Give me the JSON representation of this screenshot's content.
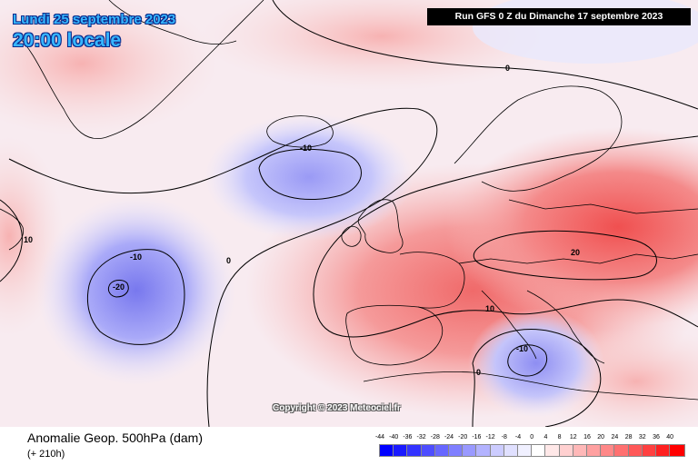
{
  "header": {
    "date": "Lundi 25 septembre 2023",
    "time": "20:00 locale",
    "run": "Run GFS 0 Z du Dimanche 17 septembre 2023"
  },
  "copyright": "Copyright © 2023 Meteociel.fr",
  "footer": {
    "field_title": "Anomalie Geop. 500hPa (dam)",
    "forecast_hour": "(+ 210h)"
  },
  "contour_labels": [
    "0",
    "-10",
    "10",
    "-10",
    "-20",
    "0",
    "20",
    "10",
    "-10",
    "0"
  ],
  "legend": {
    "ticks": [
      "-44",
      "-40",
      "-36",
      "-32",
      "-28",
      "-24",
      "-20",
      "-16",
      "-12",
      "-8",
      "-4",
      "0",
      "4",
      "8",
      "12",
      "16",
      "20",
      "24",
      "28",
      "32",
      "36",
      "40"
    ],
    "colors": [
      "#0000ff",
      "#1a1aff",
      "#3333ff",
      "#4d4dff",
      "#6666ff",
      "#7f7fff",
      "#9999ff",
      "#b3b3ff",
      "#ccccff",
      "#e0e0ff",
      "#f0f0ff",
      "#ffffff",
      "#ffe8e8",
      "#ffd0d0",
      "#ffb8b8",
      "#ffa0a0",
      "#ff8888",
      "#ff7070",
      "#ff5858",
      "#ff4040",
      "#ff2020",
      "#ff0000"
    ]
  }
}
